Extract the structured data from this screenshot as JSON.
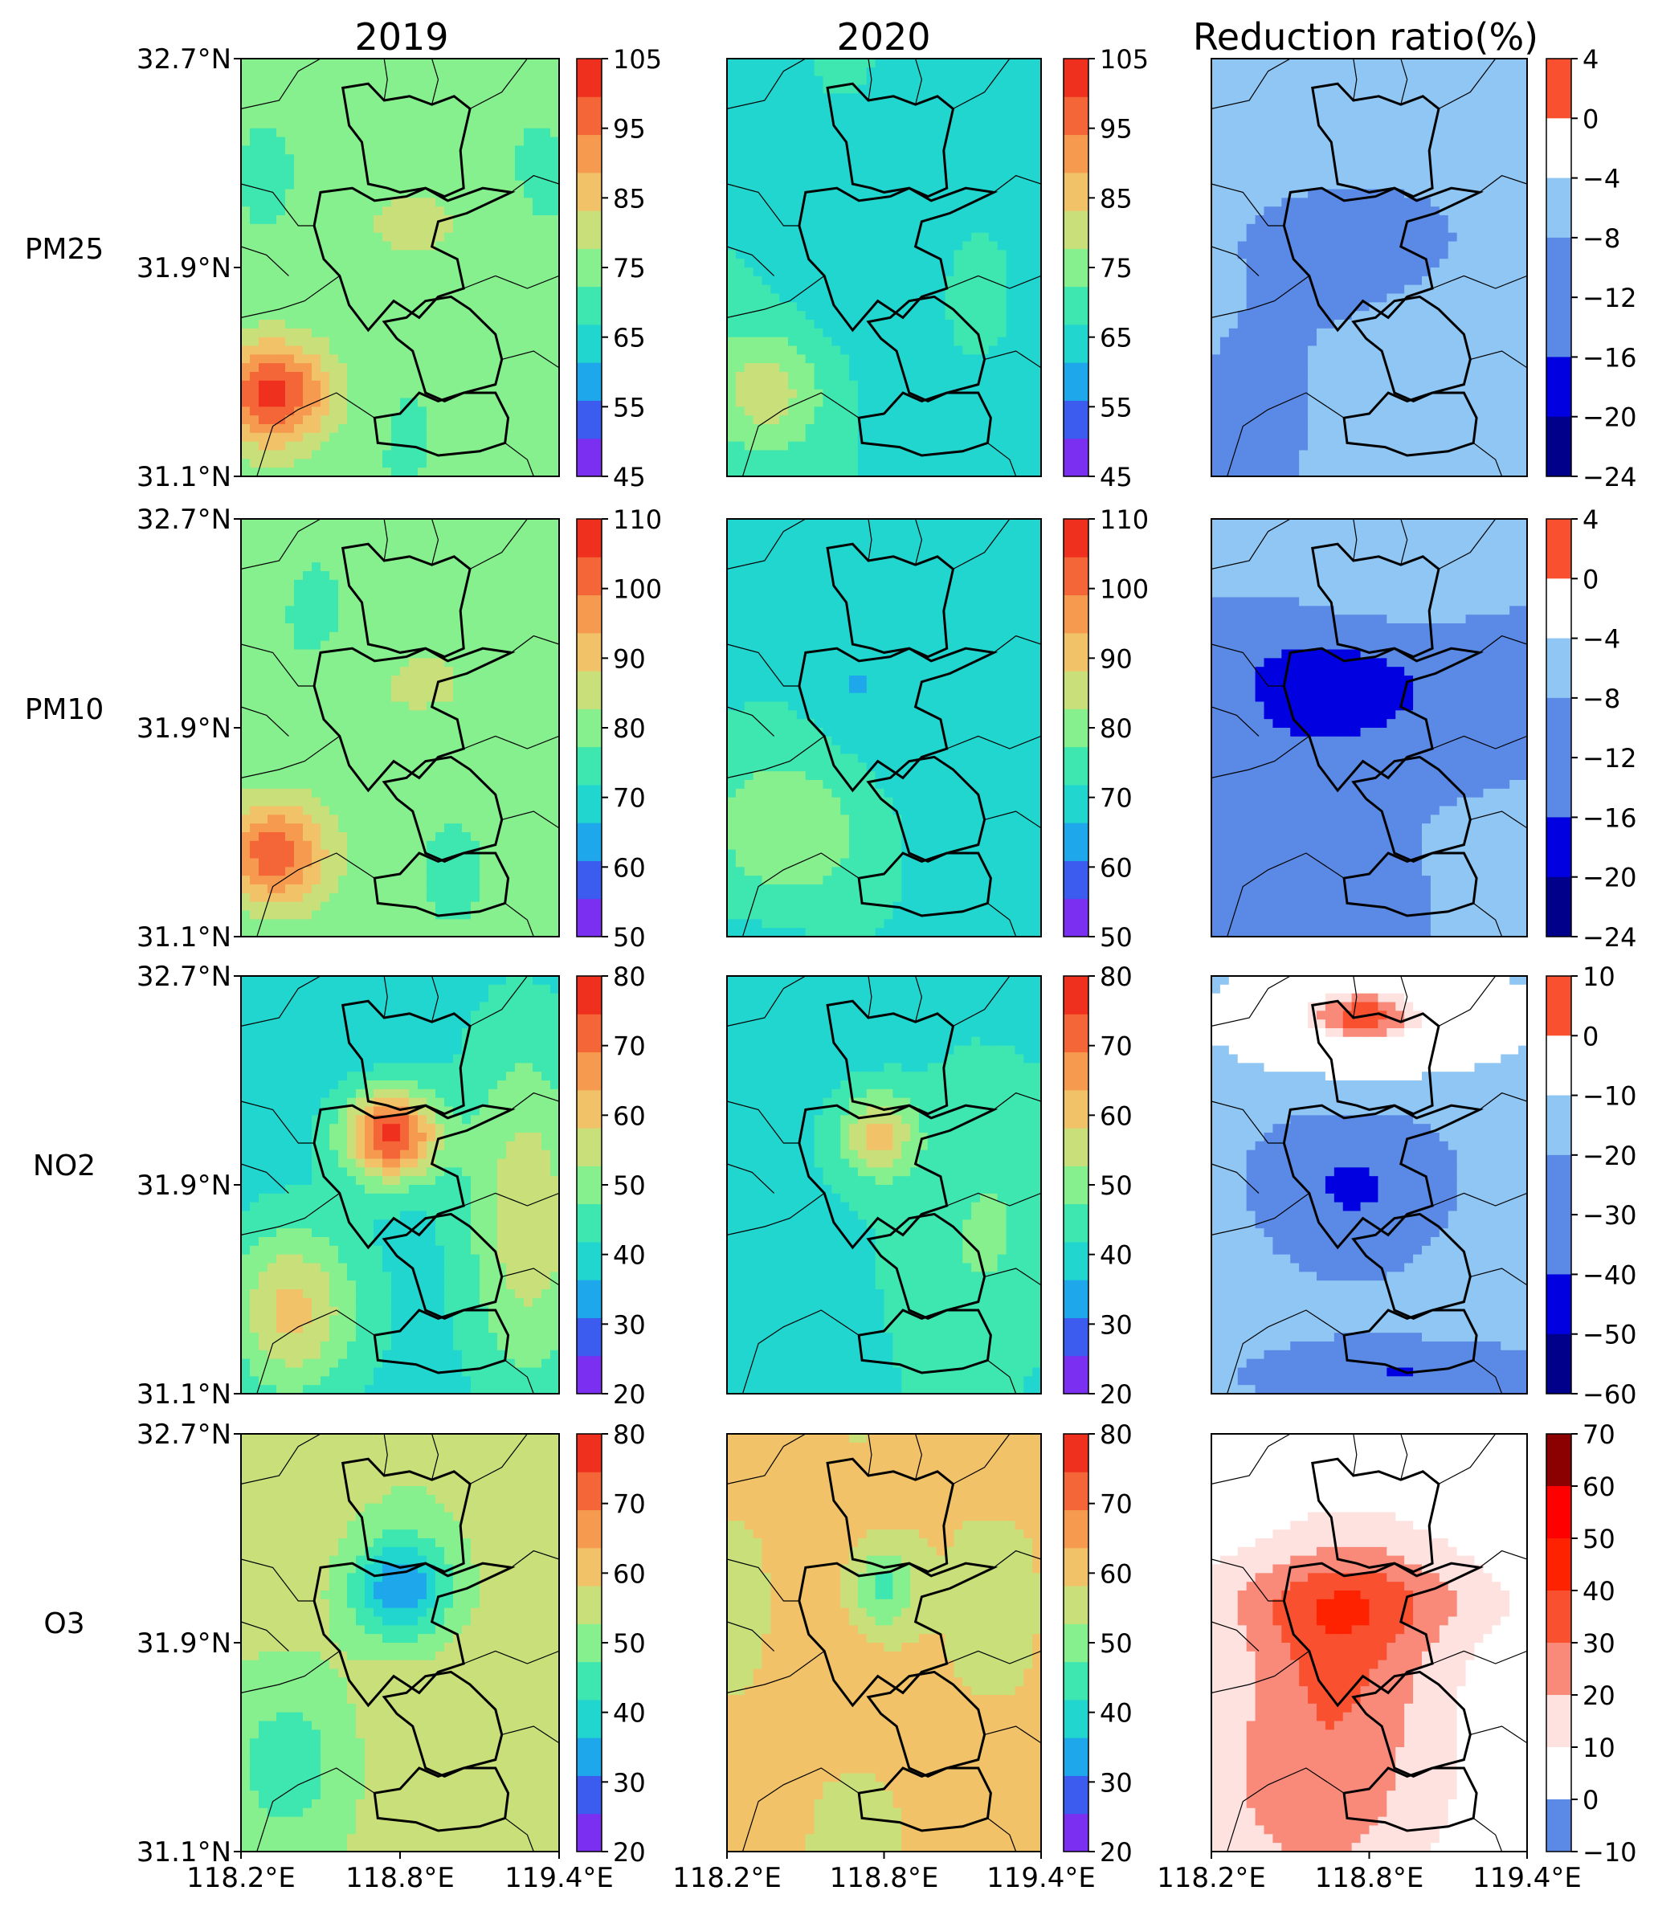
{
  "chart_data": {
    "type": "heatmap",
    "description_text": {
      "column_titles": [
        "2019",
        "2020",
        "Reduction ratio(%)"
      ],
      "row_labels": [
        "PM25",
        "PM10",
        "NO2",
        "O3"
      ]
    },
    "axes": {
      "lat_ticks": [
        "32.7°N",
        "31.9°N",
        "31.1°N"
      ],
      "lat_values": [
        32.7,
        31.9,
        31.1
      ],
      "lon_ticks": [
        "118.2°E",
        "118.8°E",
        "119.4°E"
      ],
      "lon_values": [
        118.2,
        118.8,
        119.4
      ],
      "lat_range": [
        31.1,
        32.7
      ],
      "lon_range": [
        118.2,
        119.4
      ]
    },
    "colorbars": [
      {
        "pollutant": "PM25",
        "concentration_ticks": [
          "105",
          "95",
          "85",
          "75",
          "65",
          "55",
          "45"
        ],
        "concentration_range": [
          45,
          105
        ],
        "ratio_ticks": [
          "4",
          "0",
          "−4",
          "−8",
          "−12",
          "−16",
          "−20",
          "−24"
        ],
        "ratio_range": [
          -24,
          4
        ]
      },
      {
        "pollutant": "PM10",
        "concentration_ticks": [
          "110",
          "100",
          "90",
          "80",
          "70",
          "60",
          "50"
        ],
        "concentration_range": [
          50,
          110
        ],
        "ratio_ticks": [
          "4",
          "0",
          "−4",
          "−8",
          "−12",
          "−16",
          "−20",
          "−24"
        ],
        "ratio_range": [
          -24,
          4
        ]
      },
      {
        "pollutant": "NO2",
        "concentration_ticks": [
          "80",
          "70",
          "60",
          "50",
          "40",
          "30",
          "20"
        ],
        "concentration_range": [
          20,
          80
        ],
        "ratio_ticks": [
          "10",
          "0",
          "−10",
          "−20",
          "−30",
          "−40",
          "−50",
          "−60"
        ],
        "ratio_range": [
          -60,
          10
        ]
      },
      {
        "pollutant": "O3",
        "concentration_ticks": [
          "80",
          "70",
          "60",
          "50",
          "40",
          "30",
          "20"
        ],
        "concentration_range": [
          20,
          80
        ],
        "ratio_ticks": [
          "70",
          "60",
          "50",
          "40",
          "30",
          "20",
          "10",
          "0",
          "−10"
        ],
        "ratio_range": [
          -10,
          70
        ]
      }
    ],
    "colors": {
      "concentration_low_to_high": [
        "#7b2ff0",
        "#3c5cf0",
        "#1ea7ea",
        "#22d6d0",
        "#3ee6b0",
        "#86ef8e",
        "#c9e07a",
        "#f2c268",
        "#f59a4e",
        "#f46638",
        "#f0301e"
      ],
      "ratio_negative_low_to_high": [
        "#00008b",
        "#0000e0",
        "#5a8ae6",
        "#8fc6f4",
        "#ffffff"
      ],
      "ratio_positive_low_to_high": [
        "#ffffff",
        "#fde2e0",
        "#f98a7a",
        "#f95030",
        "#ff2200",
        "#fe0000",
        "#8b0000"
      ],
      "boundary": "#000000"
    }
  }
}
